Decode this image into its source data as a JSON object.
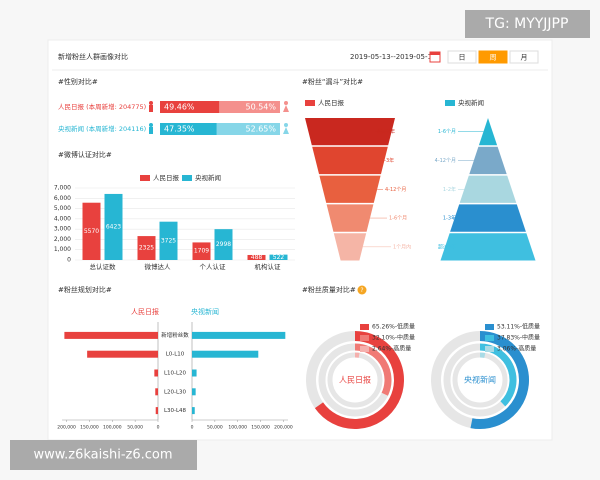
{
  "watermark_top": "TG: MYYJJPP",
  "watermark_bottom": "www.z6kaishi-z6.com",
  "header": {
    "title": "新增粉丝人群画像对比",
    "date_range": "2019-05-13--2019-05-19",
    "buttons": [
      "日",
      "周",
      "月"
    ],
    "selected_button": 1
  },
  "chart_data": [
    {
      "type": "percent_bar",
      "title": "#性别对比#",
      "categories": [
        "人民日报 (本周新增: 204775)",
        "央视新闻 (本周新增: 204116)"
      ],
      "values": [
        [
          49.46,
          50.54
        ],
        [
          47.35,
          52.65
        ]
      ],
      "value_labels": [
        [
          "49.46%",
          "50.54%"
        ],
        [
          "47.35%",
          "52.65%"
        ]
      ],
      "colors": [
        [
          "#e8413e",
          "#f4908d"
        ],
        [
          "#27b6d3",
          "#86d6e8"
        ]
      ]
    },
    {
      "type": "bar",
      "title": "#微博认证对比#",
      "categories": [
        "总认证数",
        "微博达人",
        "个人认证",
        "机构认证"
      ],
      "series": [
        {
          "name": "人民日报",
          "color": "#e8413e",
          "values": [
            5570,
            2325,
            1709,
            488
          ]
        },
        {
          "name": "央视新闻",
          "color": "#27b6d3",
          "values": [
            6423,
            3725,
            2998,
            522
          ]
        }
      ],
      "ylim": [
        0,
        7000
      ],
      "yticks": [
        0,
        {
          "value": 1000,
          "label": "1,000"
        },
        {
          "value": 2000,
          "label": "2,000"
        },
        {
          "value": 3000,
          "label": "3,000"
        },
        {
          "value": 4000,
          "label": "4,000"
        },
        {
          "value": 5000,
          "label": "5,000"
        },
        {
          "value": 6000,
          "label": "6,000"
        },
        {
          "value": 7000,
          "label": "7,000"
        }
      ],
      "grid": true
    },
    {
      "type": "funnel",
      "title": "#粉丝“漏斗”对比#",
      "series": [
        {
          "name": "人民日报",
          "color": "#e8413e",
          "levels": [
            "超过3年",
            "1-3年",
            "4-12个月",
            "1-6个月",
            "1个月内"
          ],
          "colors": [
            "#c9281f",
            "#e0452f",
            "#e8603f",
            "#f08a70",
            "#f5b5a6"
          ]
        },
        {
          "name": "央视新闻",
          "color": "#27b6d3",
          "levels": [
            "1-6个月",
            "4-12个月",
            "1-2年",
            "1-3年",
            "超过3年"
          ],
          "colors": [
            "#27b6d3",
            "#7aa9c9",
            "#a9d7e0",
            "#2a8fcf",
            "#3fbfe0"
          ]
        }
      ]
    },
    {
      "type": "butterfly",
      "title": "#粉丝规划对比#",
      "categories": [
        "新增粉丝数",
        "L0-L10",
        "L10-L20",
        "L20-L30",
        "L30-L48"
      ],
      "series": [
        {
          "name": "人民日报",
          "color": "#e8413e",
          "values": [
            204775,
            155000,
            8000,
            6000,
            5000
          ]
        },
        {
          "name": "央视新闻",
          "color": "#27b6d3",
          "values": [
            204116,
            145000,
            10000,
            8000,
            6000
          ]
        }
      ],
      "xlim": [
        0,
        210000
      ],
      "xticks": [
        0,
        {
          "value": 50000,
          "label": "50,000"
        },
        {
          "value": 100000,
          "label": "100,000"
        },
        {
          "value": 150000,
          "label": "150,000"
        },
        {
          "value": 200000,
          "label": "200,000"
        }
      ]
    },
    {
      "type": "donut",
      "title": "#粉丝质量对比#",
      "series": [
        {
          "name": "人民日报",
          "colors": [
            "#e8413e",
            "#f07a75",
            "#f5b0ad"
          ],
          "values": [
            65.26,
            32.1,
            2.64
          ],
          "value_labels": [
            "65.26%-低质量",
            "32.10%-中质量",
            "2.64%-高质量"
          ]
        },
        {
          "name": "央视新闻",
          "colors": [
            "#2a8fcf",
            "#3fbfe0",
            "#a9dbe6"
          ],
          "values": [
            53.11,
            37.83,
            3.06
          ],
          "value_labels": [
            "53.11%-低质量",
            "37.83%-中质量",
            "3.06%-高质量"
          ]
        }
      ]
    }
  ]
}
